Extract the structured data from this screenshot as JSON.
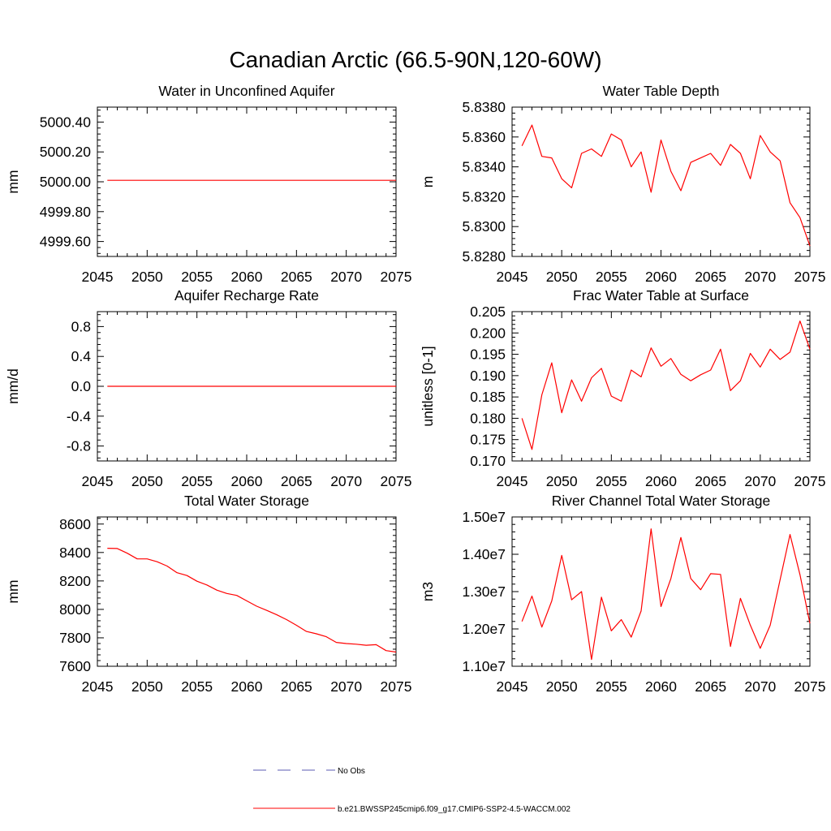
{
  "figure": {
    "title": "Canadian Arctic (66.5-90N,120-60W)"
  },
  "legend": {
    "placement": "bottom-center",
    "entries": [
      {
        "label": "No Obs",
        "style": "dashed",
        "color": "#5b5bb3"
      },
      {
        "label": "b.e21.BWSSP245cmip6.f09_g17.CMIP6-SSP2-4.5-WACCM.002",
        "style": "solid",
        "color": "#ff0000"
      }
    ]
  },
  "chart_data": [
    {
      "type": "line",
      "title": "Water in Unconfined Aquifer",
      "xlabel": "",
      "ylabel": "mm",
      "xlim": [
        2045,
        2075
      ],
      "ylim": [
        4999.5,
        5000.5
      ],
      "xticks": [
        2045,
        2050,
        2055,
        2060,
        2065,
        2070,
        2075
      ],
      "xtick_labels": [
        "2045",
        "2050",
        "2055",
        "2060",
        "2065",
        "2070",
        "2075"
      ],
      "yticks": [
        4999.6,
        4999.8,
        5000.0,
        5000.2,
        5000.4
      ],
      "ytick_labels": [
        "4999.60",
        "4999.80",
        "5000.00",
        "5000.20",
        "5000.40"
      ],
      "grid": false,
      "series": [
        {
          "color": "#ff0000",
          "x": [
            2046,
            2075
          ],
          "y": [
            5000.01,
            5000.01
          ]
        }
      ]
    },
    {
      "type": "line",
      "title": "Water Table Depth",
      "xlabel": "",
      "ylabel": "m",
      "xlim": [
        2045,
        2075
      ],
      "ylim": [
        5.828,
        5.838
      ],
      "xticks": [
        2045,
        2050,
        2055,
        2060,
        2065,
        2070,
        2075
      ],
      "xtick_labels": [
        "2045",
        "2050",
        "2055",
        "2060",
        "2065",
        "2070",
        "2075"
      ],
      "yticks": [
        5.828,
        5.83,
        5.832,
        5.834,
        5.836,
        5.838
      ],
      "ytick_labels": [
        "5.8280",
        "5.8300",
        "5.8320",
        "5.8340",
        "5.8360",
        "5.8380"
      ],
      "grid": false,
      "series": [
        {
          "color": "#ff0000",
          "x": [
            2046,
            2047,
            2048,
            2049,
            2050,
            2051,
            2052,
            2053,
            2054,
            2055,
            2056,
            2057,
            2058,
            2059,
            2060,
            2061,
            2062,
            2063,
            2064,
            2065,
            2066,
            2067,
            2068,
            2069,
            2070,
            2071,
            2072,
            2073,
            2074,
            2075
          ],
          "y": [
            5.8354,
            5.8368,
            5.8347,
            5.8346,
            5.8332,
            5.8326,
            5.8349,
            5.8352,
            5.8347,
            5.8362,
            5.8358,
            5.834,
            5.835,
            5.8323,
            5.8358,
            5.8337,
            5.8324,
            5.8343,
            5.8346,
            5.8349,
            5.8341,
            5.8355,
            5.8349,
            5.8332,
            5.8361,
            5.835,
            5.8344,
            5.8316,
            5.8306,
            5.8287
          ]
        }
      ]
    },
    {
      "type": "line",
      "title": "Aquifer Recharge Rate",
      "xlabel": "",
      "ylabel": "mm/d",
      "xlim": [
        2045,
        2075
      ],
      "ylim": [
        -1.0,
        1.0
      ],
      "xticks": [
        2045,
        2050,
        2055,
        2060,
        2065,
        2070,
        2075
      ],
      "xtick_labels": [
        "2045",
        "2050",
        "2055",
        "2060",
        "2065",
        "2070",
        "2075"
      ],
      "yticks": [
        -0.8,
        -0.4,
        0.0,
        0.4,
        0.8
      ],
      "ytick_labels": [
        "-0.8",
        "-0.4",
        "0.0",
        "0.4",
        "0.8"
      ],
      "grid": false,
      "series": [
        {
          "color": "#ff0000",
          "x": [
            2046,
            2075
          ],
          "y": [
            0.0,
            0.0
          ]
        }
      ]
    },
    {
      "type": "line",
      "title": "Frac Water Table at Surface",
      "xlabel": "",
      "ylabel": "unitless [0-1]",
      "xlim": [
        2045,
        2075
      ],
      "ylim": [
        0.17,
        0.205
      ],
      "xticks": [
        2045,
        2050,
        2055,
        2060,
        2065,
        2070,
        2075
      ],
      "xtick_labels": [
        "2045",
        "2050",
        "2055",
        "2060",
        "2065",
        "2070",
        "2075"
      ],
      "yticks": [
        0.17,
        0.175,
        0.18,
        0.185,
        0.19,
        0.195,
        0.2,
        0.205
      ],
      "ytick_labels": [
        "0.170",
        "0.175",
        "0.180",
        "0.185",
        "0.190",
        "0.195",
        "0.200",
        "0.205"
      ],
      "grid": false,
      "series": [
        {
          "color": "#ff0000",
          "x": [
            2046,
            2047,
            2048,
            2049,
            2050,
            2051,
            2052,
            2053,
            2054,
            2055,
            2056,
            2057,
            2058,
            2059,
            2060,
            2061,
            2062,
            2063,
            2064,
            2065,
            2066,
            2067,
            2068,
            2069,
            2070,
            2071,
            2072,
            2073,
            2074,
            2075
          ],
          "y": [
            0.18,
            0.1727,
            0.1855,
            0.193,
            0.1813,
            0.189,
            0.184,
            0.1895,
            0.1917,
            0.1852,
            0.184,
            0.1913,
            0.1897,
            0.1965,
            0.1922,
            0.194,
            0.1903,
            0.1888,
            0.1902,
            0.1913,
            0.1962,
            0.1865,
            0.1888,
            0.1952,
            0.192,
            0.1962,
            0.1938,
            0.1955,
            0.2028,
            0.1962
          ]
        }
      ]
    },
    {
      "type": "line",
      "title": "Total Water Storage",
      "xlabel": "",
      "ylabel": "mm",
      "xlim": [
        2045,
        2075
      ],
      "ylim": [
        7600,
        8650
      ],
      "xticks": [
        2045,
        2050,
        2055,
        2060,
        2065,
        2070,
        2075
      ],
      "xtick_labels": [
        "2045",
        "2050",
        "2055",
        "2060",
        "2065",
        "2070",
        "2075"
      ],
      "yticks": [
        7600,
        7800,
        8000,
        8200,
        8400,
        8600
      ],
      "ytick_labels": [
        "7600",
        "7800",
        "8000",
        "8200",
        "8400",
        "8600"
      ],
      "grid": false,
      "series": [
        {
          "color": "#ff0000",
          "x": [
            2046,
            2047,
            2048,
            2049,
            2050,
            2051,
            2052,
            2053,
            2054,
            2055,
            2056,
            2057,
            2058,
            2059,
            2060,
            2061,
            2062,
            2063,
            2064,
            2065,
            2066,
            2067,
            2068,
            2069,
            2070,
            2071,
            2072,
            2073,
            2074,
            2075
          ],
          "y": [
            8430,
            8428,
            8395,
            8355,
            8355,
            8335,
            8305,
            8258,
            8238,
            8198,
            8172,
            8135,
            8112,
            8098,
            8060,
            8022,
            7993,
            7963,
            7928,
            7888,
            7845,
            7828,
            7808,
            7768,
            7760,
            7755,
            7748,
            7752,
            7710,
            7700
          ]
        }
      ]
    },
    {
      "type": "line",
      "title": "River Channel Total Water Storage",
      "xlabel": "",
      "ylabel": "m3",
      "xlim": [
        2045,
        2075
      ],
      "ylim": [
        11000000,
        15000000
      ],
      "xticks": [
        2045,
        2050,
        2055,
        2060,
        2065,
        2070,
        2075
      ],
      "xtick_labels": [
        "2045",
        "2050",
        "2055",
        "2060",
        "2065",
        "2070",
        "2075"
      ],
      "yticks": [
        11000000,
        12000000,
        13000000,
        14000000,
        15000000
      ],
      "ytick_labels": [
        "1.10e7",
        "1.20e7",
        "1.30e7",
        "1.40e7",
        "1.50e7"
      ],
      "grid": false,
      "series": [
        {
          "color": "#ff0000",
          "x": [
            2046,
            2047,
            2048,
            2049,
            2050,
            2051,
            2052,
            2053,
            2054,
            2055,
            2056,
            2057,
            2058,
            2059,
            2060,
            2061,
            2062,
            2063,
            2064,
            2065,
            2066,
            2067,
            2068,
            2069,
            2070,
            2071,
            2072,
            2073,
            2074,
            2075
          ],
          "y": [
            12200000,
            12880000,
            12050000,
            12750000,
            13970000,
            12780000,
            13000000,
            11180000,
            12850000,
            11950000,
            12250000,
            11780000,
            12480000,
            14680000,
            12600000,
            13350000,
            14450000,
            13350000,
            13050000,
            13480000,
            13460000,
            11530000,
            12820000,
            12100000,
            11480000,
            12100000,
            13320000,
            14530000,
            13450000,
            12150000
          ]
        }
      ]
    }
  ]
}
